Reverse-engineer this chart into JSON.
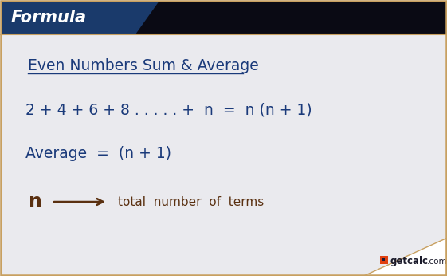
{
  "bg_color": "#eaeaee",
  "header_bg": "#1a3a6b",
  "black_bar_color": "#0a0a14",
  "header_text": "Formula",
  "header_text_color": "#ffffff",
  "border_color": "#c8a060",
  "main_text_color": "#1a3a7a",
  "legend_text_color": "#5a3010",
  "title_line": "Even Numbers Sum & Average",
  "formula_line": "2 + 4 + 6 + 8 . . . . . +  n  =  n (n + 1)",
  "average_line": "Average  =  (n + 1)",
  "n_label": "n",
  "arrow_text": "total  number  of  terms",
  "watermark_main": "getcalc",
  "watermark_com": ".com",
  "fig_width": 5.61,
  "fig_height": 3.46,
  "dpi": 100
}
